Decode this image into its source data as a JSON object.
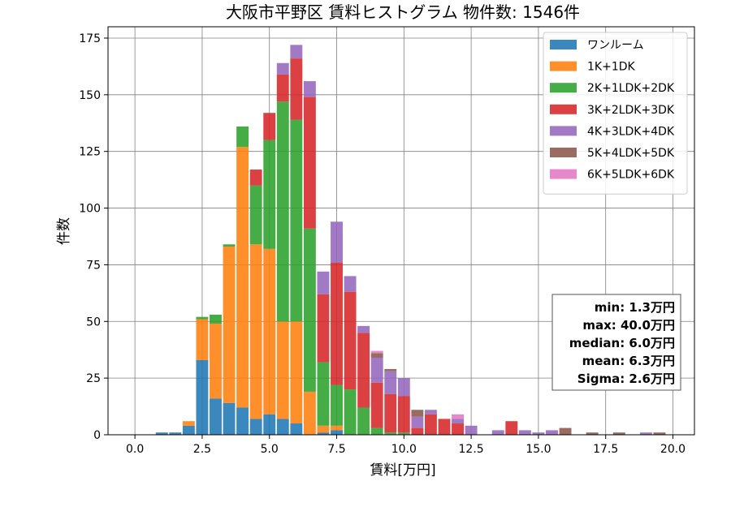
{
  "chart_data": {
    "type": "bar",
    "stacked": true,
    "title": "大阪市平野区 賃料ヒストグラム 物件数: 1546件",
    "xlabel": "賃料[万円]",
    "ylabel": "件数",
    "xlim": [
      -1.0,
      20.8
    ],
    "ylim": [
      0,
      180
    ],
    "xticks": [
      0.0,
      2.5,
      5.0,
      7.5,
      10.0,
      12.5,
      15.0,
      17.5,
      20.0
    ],
    "xtick_labels": [
      "0.0",
      "2.5",
      "5.0",
      "7.5",
      "10.0",
      "12.5",
      "15.0",
      "17.5",
      "20.0"
    ],
    "yticks": [
      0,
      25,
      50,
      75,
      100,
      125,
      150,
      175
    ],
    "ytick_labels": [
      "0",
      "25",
      "50",
      "75",
      "100",
      "125",
      "150",
      "175"
    ],
    "grid": true,
    "legend_position": "top-right",
    "bin_width": 0.5,
    "x": [
      1.0,
      1.5,
      2.0,
      2.5,
      3.0,
      3.5,
      4.0,
      4.5,
      5.0,
      5.5,
      6.0,
      6.5,
      7.0,
      7.5,
      8.0,
      8.5,
      9.0,
      9.5,
      10.0,
      10.5,
      11.0,
      11.5,
      12.0,
      12.5,
      13.5,
      14.0,
      14.5,
      15.0,
      15.5,
      16.0,
      17.0,
      18.0,
      19.0,
      19.5
    ],
    "series": [
      {
        "name": "ワンルーム",
        "color": "#1f77b4",
        "values": [
          1,
          1,
          4,
          33,
          16,
          14,
          12,
          7,
          9,
          7,
          5,
          0,
          1,
          2,
          0,
          0,
          0,
          0,
          0,
          0,
          0,
          0,
          0,
          0,
          0,
          0,
          0,
          0,
          0,
          0,
          0,
          0,
          0,
          0
        ]
      },
      {
        "name": "1K+1DK",
        "color": "#ff7f0e",
        "values": [
          0,
          0,
          2,
          18,
          33,
          69,
          115,
          77,
          73,
          43,
          45,
          19,
          3,
          2,
          0,
          0,
          0,
          0,
          0,
          0,
          0,
          0,
          0,
          0,
          0,
          0,
          0,
          0,
          0,
          0,
          0,
          0,
          0,
          0
        ]
      },
      {
        "name": "2K+1LDK+2DK",
        "color": "#2ca02c",
        "values": [
          0,
          0,
          0,
          1,
          4,
          1,
          9,
          26,
          48,
          97,
          89,
          72,
          28,
          18,
          20,
          12,
          3,
          1,
          1,
          0,
          0,
          0,
          0,
          0,
          0,
          0,
          0,
          0,
          0,
          0,
          0,
          0,
          0,
          0
        ]
      },
      {
        "name": "3K+2LDK+3DK",
        "color": "#d62728",
        "values": [
          0,
          0,
          0,
          0,
          0,
          0,
          0,
          7,
          12,
          12,
          27,
          58,
          30,
          54,
          43,
          33,
          20,
          17,
          16,
          3,
          9,
          7,
          5,
          0,
          0,
          6,
          0,
          0,
          0,
          0,
          0,
          0,
          0,
          0
        ]
      },
      {
        "name": "4K+3LDK+4DK",
        "color": "#9467bd",
        "values": [
          0,
          0,
          0,
          0,
          0,
          0,
          0,
          0,
          0,
          5,
          6,
          7,
          10,
          18,
          7,
          3,
          11,
          10,
          8,
          5,
          2,
          0,
          2,
          4,
          2,
          0,
          2,
          1,
          2,
          0,
          0,
          0,
          1,
          0
        ]
      },
      {
        "name": "5K+4LDK+5DK",
        "color": "#8c564b",
        "values": [
          0,
          0,
          0,
          0,
          0,
          0,
          0,
          0,
          0,
          0,
          0,
          0,
          0,
          0,
          0,
          0,
          2,
          1,
          0,
          3,
          0,
          0,
          0,
          0,
          0,
          0,
          0,
          0,
          0,
          3,
          1,
          1,
          0,
          1
        ]
      },
      {
        "name": "6K+5LDK+6DK",
        "color": "#e377c2",
        "values": [
          0,
          0,
          0,
          0,
          0,
          0,
          0,
          0,
          0,
          0,
          0,
          0,
          0,
          0,
          0,
          0,
          1,
          0,
          0,
          0,
          0,
          0,
          2,
          0,
          0,
          0,
          0,
          0,
          0,
          0,
          0,
          0,
          0,
          0
        ]
      }
    ],
    "annotations": [
      "min: 1.3万円",
      "max: 40.0万円",
      "median: 6.0万円",
      "mean: 6.3万円",
      "Sigma: 2.6万円"
    ]
  }
}
